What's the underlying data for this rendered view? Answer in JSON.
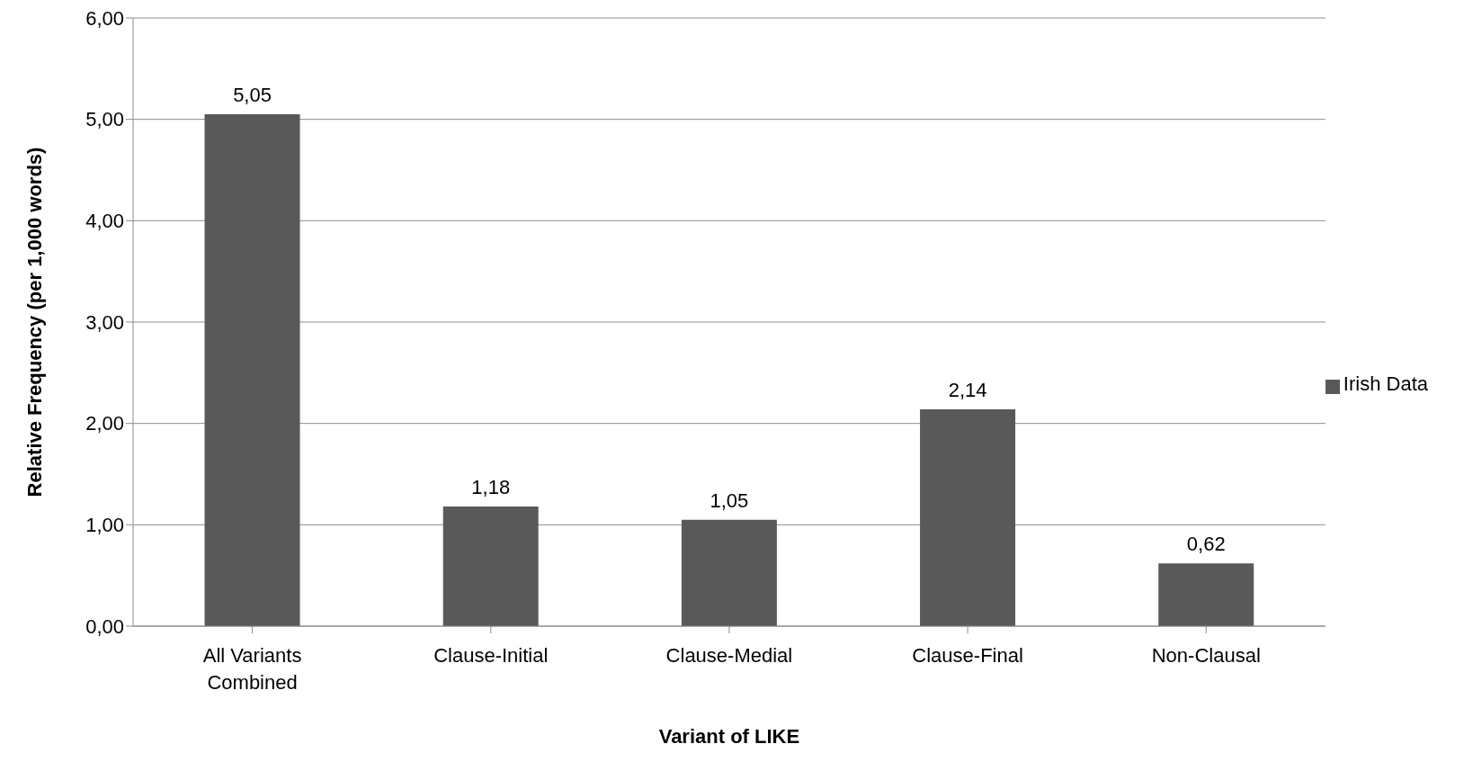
{
  "chart_data": {
    "type": "bar",
    "xlabel": "Variant of LIKE",
    "ylabel": "Relative Frequency (per 1,000 words)",
    "categories": [
      "All Variants Combined",
      "Clause-Initial",
      "Clause-Medial",
      "Clause-Final",
      "Non-Clausal"
    ],
    "series": [
      {
        "name": "Irish Data",
        "color": "#595959",
        "values": [
          5.05,
          1.18,
          1.05,
          2.14,
          0.62
        ],
        "value_labels": [
          "5,05",
          "1,18",
          "1,05",
          "2,14",
          "0,62"
        ]
      }
    ],
    "ylim": [
      0,
      6
    ],
    "yticks": [
      {
        "value": 0,
        "label": "0,00"
      },
      {
        "value": 1,
        "label": "1,00"
      },
      {
        "value": 2,
        "label": "2,00"
      },
      {
        "value": 3,
        "label": "3,00"
      },
      {
        "value": 4,
        "label": "4,00"
      },
      {
        "value": 5,
        "label": "5,00"
      },
      {
        "value": 6,
        "label": "6,00"
      }
    ],
    "grid": "y",
    "legend": "right"
  }
}
